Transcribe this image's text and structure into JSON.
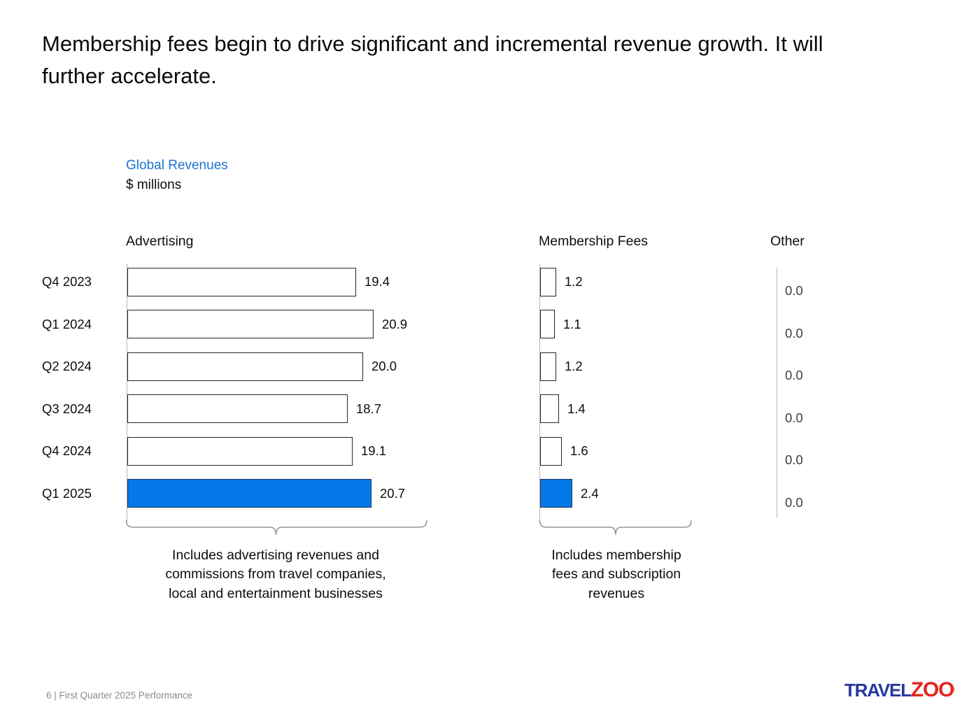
{
  "slide": {
    "title": "Membership fees begin to drive significant and incremental revenue growth. It will further accelerate.",
    "footer": "6 | First Quarter 2025 Performance",
    "logo": {
      "part1": "TRAVEL",
      "part2": "ZOO",
      "registered": "®"
    }
  },
  "chart_data": {
    "type": "bar",
    "orientation": "horizontal",
    "title": "Global Revenues",
    "unit_label": "$ millions",
    "categories": [
      "Q4 2023",
      "Q1 2024",
      "Q2 2024",
      "Q3 2024",
      "Q4 2024",
      "Q1 2025"
    ],
    "series": [
      {
        "name": "Advertising",
        "values": [
          19.4,
          20.9,
          20.0,
          18.7,
          19.1,
          20.7
        ]
      },
      {
        "name": "Membership Fees",
        "values": [
          1.2,
          1.1,
          1.2,
          1.4,
          1.6,
          2.4
        ]
      },
      {
        "name": "Other",
        "values": [
          0.0,
          0.0,
          0.0,
          0.0,
          0.0,
          0.0
        ]
      }
    ],
    "highlight_category": "Q1 2025",
    "value_decimals": 1,
    "grid": false,
    "legend": "none",
    "colors": {
      "bar_fill": "#ffffff",
      "bar_border": "#262626",
      "highlight_fill": "#0778e8",
      "accent_text": "#1e73d2",
      "other_value_text": "#404040"
    },
    "annotations": [
      {
        "target": "Advertising",
        "text": "Includes advertising revenues and\ncommissions from travel companies,\nlocal and entertainment businesses"
      },
      {
        "target": "Membership Fees",
        "text": "Includes membership\nfees and subscription\nrevenues"
      }
    ]
  }
}
